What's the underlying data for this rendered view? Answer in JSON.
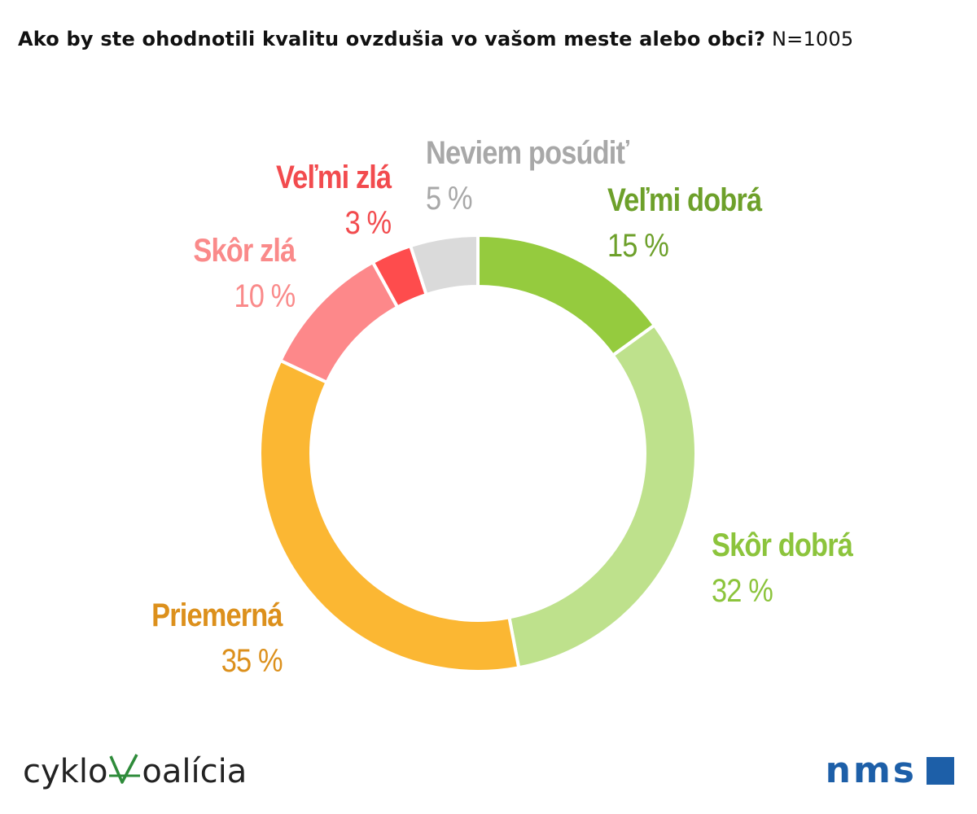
{
  "header": {
    "question": "Ako by ste ohodnotili kvalitu ovzdušia vo vašom meste alebo obci?",
    "sample": "N=1005"
  },
  "chart_data": {
    "type": "pie",
    "variant": "donut",
    "title": "Ako by ste ohodnotili kvalitu ovzdušia vo vašom meste alebo obci?",
    "categories": [
      "Veľmi dobrá",
      "Skôr dobrá",
      "Priemerná",
      "Skôr zlá",
      "Veľmi zlá",
      "Neviem posúdiť"
    ],
    "values": [
      15,
      32,
      35,
      10,
      3,
      5
    ],
    "labels": [
      "15 %",
      "32 %",
      "35 %",
      "10 %",
      "3 %",
      "5 %"
    ],
    "colors": [
      "#95cb3e",
      "#bee18c",
      "#fbb733",
      "#fd888a",
      "#fe4c4d",
      "#dadada"
    ],
    "label_colors": [
      "#6da02a",
      "#8cc43c",
      "#dc901c",
      "#fa8a8a",
      "#f24b4e",
      "#a8a8a8"
    ],
    "legend": "none"
  },
  "logos": {
    "left": "cyklokoalícia",
    "right": "nms"
  }
}
